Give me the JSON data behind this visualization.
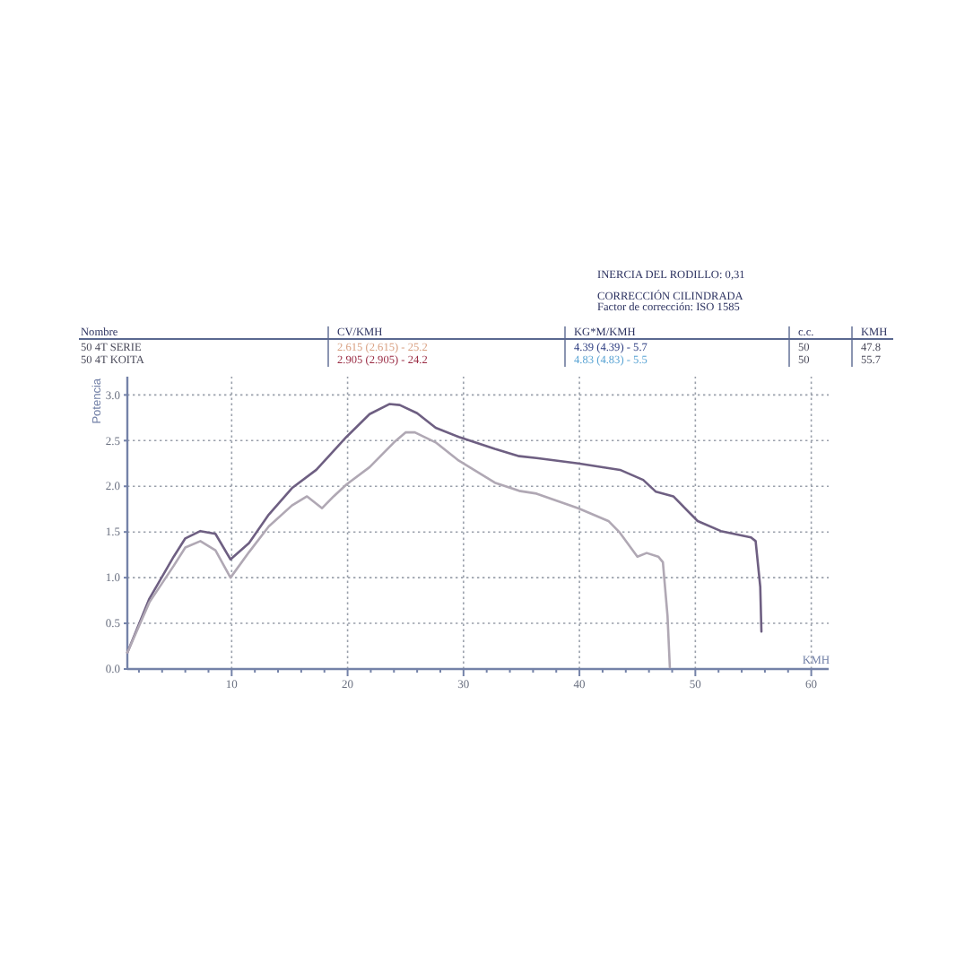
{
  "chart_data": {
    "type": "line",
    "xlabel": "KMH",
    "ylabel": "Potencia",
    "annotations": [
      "INERCIA DEL RODILLO: 0,31",
      "CORRECCIÓN CILINDRADA",
      "Factor de corrección: ISO 1585",
      "Nombre",
      "CV/KMH",
      "KG*M/KMH",
      "c.c.",
      "KMH",
      "50 4T SERIE",
      "2.615 (2.615) - 25.2",
      "4.39 (4.39) - 5.7",
      "50",
      "47.8",
      "50 4T KOITA",
      "2.905 (2.905) - 24.2",
      "4.83 (4.83) - 5.5",
      "50",
      "55.7"
    ],
    "series": [
      {
        "color": "#6e5f82",
        "x": [
          1.0,
          2.9,
          5.0,
          6.0,
          7.3,
          8.6,
          9.9,
          11.5,
          13.2,
          15.2,
          17.3,
          19.9,
          21.9,
          23.6,
          24.5,
          26.0,
          27.6,
          29.6,
          32.7,
          34.8,
          36.3,
          39.9,
          43.5,
          45.5,
          46.6,
          48.1,
          50.2,
          52.2,
          54.8,
          55.2,
          55.6,
          55.7
        ],
        "values": [
          0.18,
          0.77,
          1.23,
          1.43,
          1.51,
          1.48,
          1.2,
          1.38,
          1.69,
          1.98,
          2.18,
          2.54,
          2.79,
          2.9,
          2.89,
          2.8,
          2.64,
          2.54,
          2.41,
          2.33,
          2.31,
          2.25,
          2.18,
          2.07,
          1.94,
          1.89,
          1.62,
          1.51,
          1.44,
          1.4,
          0.9,
          0.41
        ]
      },
      {
        "color": "#b0a8b4",
        "x": [
          1.0,
          2.9,
          5.0,
          6.0,
          7.3,
          8.6,
          9.9,
          11.5,
          13.2,
          15.2,
          16.5,
          17.8,
          18.8,
          19.9,
          21.9,
          24.0,
          25.0,
          25.8,
          27.6,
          29.6,
          32.7,
          34.8,
          36.3,
          39.9,
          42.5,
          43.5,
          45.0,
          45.8,
          46.8,
          47.2,
          47.6,
          47.8
        ],
        "values": [
          0.18,
          0.73,
          1.13,
          1.33,
          1.4,
          1.3,
          1.0,
          1.28,
          1.56,
          1.79,
          1.89,
          1.76,
          1.89,
          2.02,
          2.21,
          2.48,
          2.59,
          2.59,
          2.48,
          2.28,
          2.04,
          1.95,
          1.92,
          1.76,
          1.62,
          1.49,
          1.23,
          1.27,
          1.23,
          1.17,
          0.58,
          0.02
        ]
      }
    ],
    "xlim": [
      1,
      61.5
    ],
    "xticks": [
      {
        "value": 2,
        "label": null
      },
      {
        "value": 4,
        "label": null
      },
      {
        "value": 6,
        "label": null
      },
      {
        "value": 8,
        "label": null
      },
      10,
      {
        "value": 12,
        "label": null
      },
      {
        "value": 14,
        "label": null
      },
      {
        "value": 16,
        "label": null
      },
      {
        "value": 18,
        "label": null
      },
      20,
      {
        "value": 22,
        "label": null
      },
      {
        "value": 24,
        "label": null
      },
      {
        "value": 26,
        "label": null
      },
      {
        "value": 28,
        "label": null
      },
      30,
      {
        "value": 32,
        "label": null
      },
      {
        "value": 34,
        "label": null
      },
      {
        "value": 36,
        "label": null
      },
      {
        "value": 38,
        "label": null
      },
      40,
      {
        "value": 42,
        "label": null
      },
      {
        "value": 44,
        "label": null
      },
      {
        "value": 46,
        "label": null
      },
      {
        "value": 48,
        "label": null
      },
      50,
      {
        "value": 52,
        "label": null
      },
      {
        "value": 54,
        "label": null
      },
      {
        "value": 56,
        "label": null
      },
      {
        "value": 58,
        "label": null
      },
      60
    ],
    "ylim": [
      0,
      3.2
    ],
    "yticks": [
      {
        "value": 0,
        "label": "0.0"
      },
      {
        "value": 0.5,
        "label": "0.5"
      },
      {
        "value": 1,
        "label": "1.0"
      },
      {
        "value": 1.5,
        "label": "1.5"
      },
      {
        "value": 2,
        "label": "2.0"
      },
      {
        "value": 2.5,
        "label": "2.5"
      },
      {
        "value": 3,
        "label": "3.0"
      }
    ],
    "grid": true,
    "marker": "none",
    "line_style": "solid"
  }
}
